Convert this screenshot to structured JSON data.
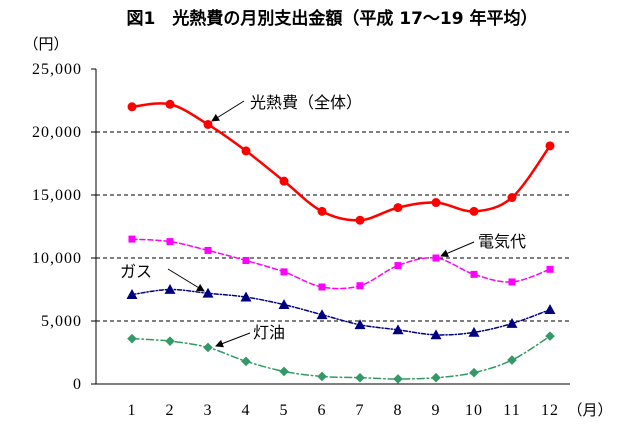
{
  "chart_data": {
    "type": "line",
    "title": "図1　光熱費の月別支出金額（平成 17～19 年平均）",
    "ylabel": "（円）",
    "xlabel": "（月）",
    "categories": [
      "1",
      "2",
      "3",
      "4",
      "5",
      "6",
      "7",
      "8",
      "9",
      "10",
      "11",
      "12"
    ],
    "ylim": [
      0,
      25000
    ],
    "yticks": [
      0,
      5000,
      10000,
      15000,
      20000,
      25000
    ],
    "ytick_labels": [
      "0",
      "5,000",
      "10,000",
      "15,000",
      "20,000",
      "25,000"
    ],
    "grid": true,
    "series": [
      {
        "name": "光熱費（全体）",
        "color": "#FF0000",
        "values": [
          22000,
          22200,
          20600,
          18500,
          16100,
          13700,
          13000,
          14000,
          14400,
          13700,
          14800,
          18900
        ]
      },
      {
        "name": "電気代",
        "color": "#FF00FF",
        "values": [
          11500,
          11300,
          10600,
          9800,
          8900,
          7700,
          7800,
          9400,
          10000,
          8700,
          8100,
          9100
        ]
      },
      {
        "name": "ガス",
        "color": "#000080",
        "values": [
          7100,
          7500,
          7200,
          6900,
          6300,
          5500,
          4700,
          4300,
          3900,
          4100,
          4800,
          5900
        ]
      },
      {
        "name": "灯油",
        "color": "#339966",
        "values": [
          3600,
          3400,
          2900,
          1800,
          1000,
          600,
          500,
          400,
          500,
          900,
          1900,
          3800
        ]
      }
    ]
  }
}
